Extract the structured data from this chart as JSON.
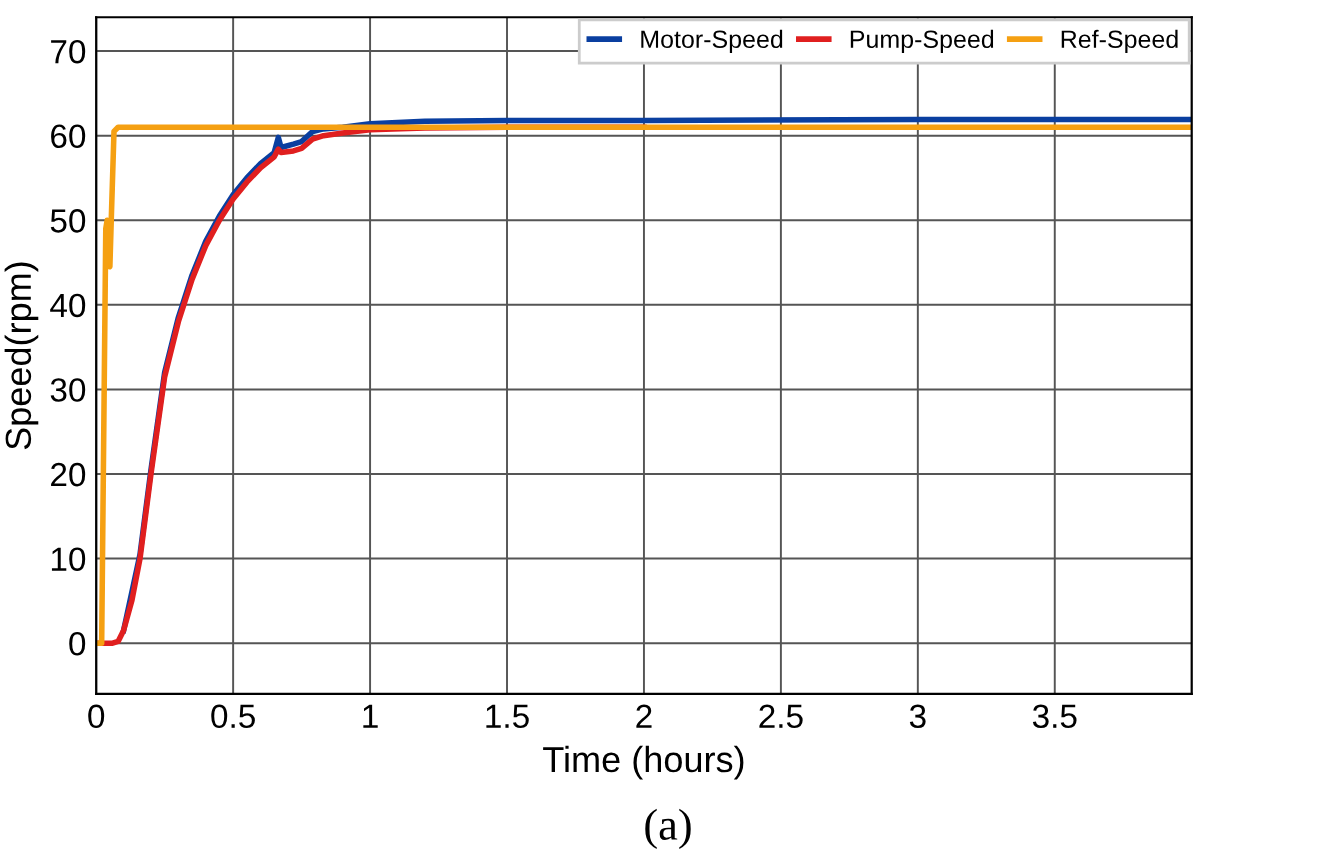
{
  "chart_data": {
    "type": "line",
    "xlabel": "Time (hours)",
    "ylabel": "Speed(rpm)",
    "xlim": [
      0,
      4
    ],
    "ylim": [
      -6,
      74
    ],
    "xticks": [
      0,
      0.5,
      1,
      1.5,
      2,
      2.5,
      3,
      3.5
    ],
    "yticks": [
      0,
      10,
      20,
      30,
      40,
      50,
      60,
      70
    ],
    "grid": true,
    "legend": "top right",
    "annotations": [
      "(a)"
    ],
    "series": [
      {
        "name": "Motor-Speed",
        "color": "#0a3fa0",
        "x": [
          0.1,
          0.16,
          0.2,
          0.25,
          0.3,
          0.35,
          0.4,
          0.45,
          0.5,
          0.55,
          0.6,
          0.65,
          0.665,
          0.675,
          0.72,
          0.75,
          0.79,
          0.83,
          0.9,
          1.0,
          1.2,
          1.5,
          2,
          3,
          4
        ],
        "values": [
          1.5,
          10.5,
          20.5,
          32,
          38.5,
          43.5,
          47.5,
          50.5,
          53,
          55,
          56.7,
          58,
          59.8,
          58.6,
          59,
          59.3,
          60.5,
          60.8,
          61,
          61.4,
          61.7,
          61.8,
          61.8,
          61.9,
          61.9
        ]
      },
      {
        "name": "Pump-Speed",
        "color": "#e01f1f",
        "x": [
          0,
          0.06,
          0.08,
          0.1,
          0.13,
          0.16,
          0.2,
          0.25,
          0.3,
          0.35,
          0.4,
          0.45,
          0.5,
          0.55,
          0.6,
          0.65,
          0.665,
          0.675,
          0.72,
          0.75,
          0.79,
          0.83,
          0.9,
          1.0,
          1.2,
          1.5,
          2
        ],
        "values": [
          0,
          0,
          0.2,
          1.5,
          5,
          10,
          20,
          31.5,
          38,
          43,
          47,
          50,
          52.5,
          54.5,
          56.2,
          57.5,
          58.4,
          58,
          58.2,
          58.5,
          59.6,
          60,
          60.3,
          60.7,
          60.9,
          61,
          61
        ]
      },
      {
        "name": "Ref-Speed",
        "color": "#f5a012",
        "x": [
          0,
          0.02,
          0.035,
          0.04,
          0.045,
          0.05,
          0.055,
          0.065,
          0.08,
          0.2,
          0.5,
          1,
          2,
          3,
          4
        ],
        "values": [
          0,
          0,
          49,
          50,
          45,
          44.5,
          50,
          60.5,
          61,
          61,
          61,
          61,
          61,
          61,
          61
        ]
      }
    ]
  }
}
